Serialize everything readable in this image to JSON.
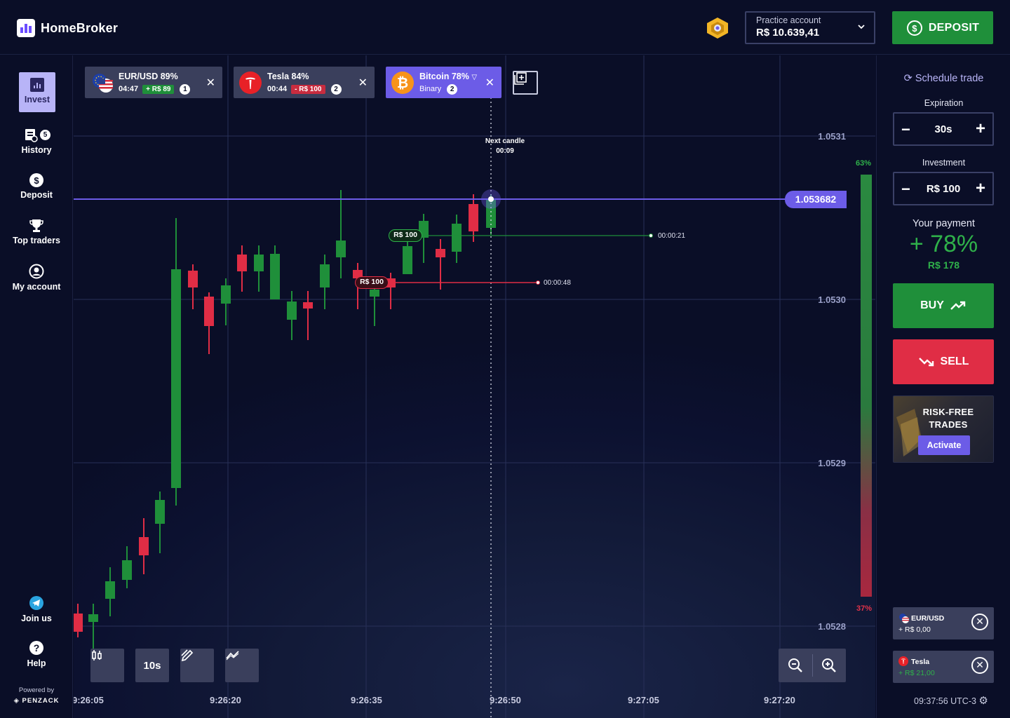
{
  "brand": {
    "name": "HomeBroker"
  },
  "account": {
    "label": "Practice account",
    "balance": "R$ 10.639,41"
  },
  "deposit_button": "DEPOSIT",
  "sidebar": {
    "items": [
      {
        "label": "Invest"
      },
      {
        "label": "History",
        "badge": "5"
      },
      {
        "label": "Deposit"
      },
      {
        "label": "Top traders"
      },
      {
        "label": "My account"
      }
    ],
    "bottom": [
      {
        "label": "Join us"
      },
      {
        "label": "Help"
      }
    ],
    "powered_by": "Powered by",
    "powered_name": "PENZACK"
  },
  "tabs": [
    {
      "title": "EUR/USD 89%",
      "time": "04:47",
      "pill": "+ R$ 89",
      "count": "1"
    },
    {
      "title": "Tesla 84%",
      "time": "00:44",
      "pill": "- R$ 100",
      "count": "2"
    },
    {
      "title": "Bitcoin 78%",
      "subtitle": "Binary",
      "count": "2"
    }
  ],
  "chart": {
    "price_ticks": [
      "1.0531",
      "1.0530",
      "1.0529",
      "1.0528"
    ],
    "current_price": "1.053682",
    "time_ticks": [
      "9:26:05",
      "9:26:20",
      "9:26:35",
      "9:26:50",
      "9:27:05",
      "9:27:20"
    ],
    "next_candle_label": "Next candle",
    "next_candle_time": "00:09",
    "trades": [
      {
        "amount": "R$ 100",
        "direction": "up",
        "remaining": "00:00:21"
      },
      {
        "amount": "R$ 100",
        "direction": "down",
        "remaining": "00:00:48"
      }
    ],
    "sentiment_up": "63%",
    "sentiment_down": "37%",
    "timeframe": "10s",
    "colors": {
      "up": "#1f8f3a",
      "down": "#e02d45",
      "accent": "#6c5ce7"
    }
  },
  "right": {
    "schedule": "Schedule trade",
    "expiration_label": "Expiration",
    "expiration": "30s",
    "investment_label": "Investment",
    "investment": "R$ 100",
    "payment_label": "Your payment",
    "payment_pct": "+ 78%",
    "payment_value": "R$ 178",
    "buy": "BUY",
    "sell": "SELL",
    "promo_title": "RISK-FREE TRADES",
    "promo_button": "Activate",
    "open_trades": [
      {
        "name": "EUR/USD",
        "profit": "+ R$ 0,00"
      },
      {
        "name": "Tesla",
        "profit": "+ R$ 21,00"
      }
    ],
    "clock": "09:37:56 UTC-3"
  }
}
